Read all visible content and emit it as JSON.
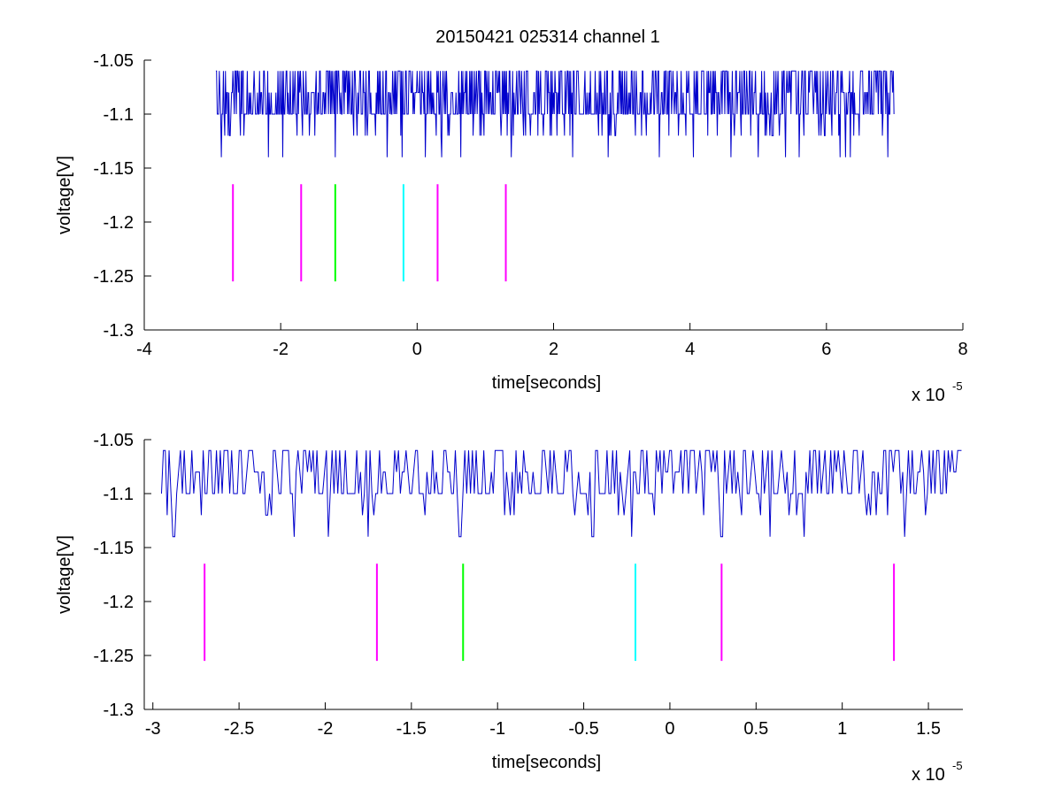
{
  "figure": {
    "title": "20150421 025314 channel 1"
  },
  "chart_data": [
    {
      "type": "line",
      "title": "20150421 025314 channel 1",
      "xlabel": "time[seconds]",
      "ylabel": "voltage[V]",
      "x_exponent_label": "x 10",
      "x_exponent": "-5",
      "xlim": [
        -4e-05,
        8e-05
      ],
      "ylim": [
        -1.3,
        -1.05
      ],
      "xticks": [
        -4e-05,
        -2e-05,
        0,
        2e-05,
        4e-05,
        6e-05,
        8e-05
      ],
      "xtick_labels": [
        "-4",
        "-2",
        "0",
        "2",
        "4",
        "6",
        "8"
      ],
      "yticks": [
        -1.3,
        -1.25,
        -1.2,
        -1.15,
        -1.1,
        -1.05
      ],
      "ytick_labels": [
        "-1.3",
        "-1.25",
        "-1.2",
        "-1.15",
        "-1.1",
        "-1.05"
      ],
      "grid": false,
      "signal": {
        "color": "#0000cc",
        "x_start": -2.95e-05,
        "x_end": 7e-05,
        "baseline": -1.1,
        "levels": [
          -1.06,
          -1.08,
          -1.1,
          -1.12,
          -1.14
        ],
        "dips_to_min": [
          -2.87e-05,
          -2.18e-05,
          -1.97e-05,
          -1.2e-05,
          -4.4e-06,
          -2.2e-06,
          1.2e-06,
          3.6e-06,
          6.4e-06,
          1.38e-05,
          2.28e-05,
          2.8e-05,
          3.55e-05,
          4.05e-05,
          4.6e-05,
          5e-05,
          5.4e-05,
          5.6e-05,
          6.2e-05,
          6.28e-05,
          6.35e-05,
          6.9e-05
        ],
        "description_points": "dense noise between -1.06 and -1.1 with occasional dips to -1.14"
      },
      "markers": [
        {
          "x": -2.7e-05,
          "y_low": -1.255,
          "y_high": -1.165,
          "color": "#ff00ff"
        },
        {
          "x": -1.7e-05,
          "y_low": -1.255,
          "y_high": -1.165,
          "color": "#ff00ff"
        },
        {
          "x": -1.2e-05,
          "y_low": -1.255,
          "y_high": -1.165,
          "color": "#00ff00"
        },
        {
          "x": -2e-06,
          "y_low": -1.255,
          "y_high": -1.165,
          "color": "#00ffff"
        },
        {
          "x": 3e-06,
          "y_low": -1.255,
          "y_high": -1.165,
          "color": "#ff00ff"
        },
        {
          "x": 1.3e-05,
          "y_low": -1.255,
          "y_high": -1.165,
          "color": "#ff00ff"
        }
      ]
    },
    {
      "type": "line",
      "title": "",
      "xlabel": "time[seconds]",
      "ylabel": "voltage[V]",
      "x_exponent_label": "x 10",
      "x_exponent": "-5",
      "xlim": [
        -3.05e-05,
        1.7e-05
      ],
      "ylim": [
        -1.3,
        -1.05
      ],
      "xticks": [
        -3e-05,
        -2.5e-05,
        -2e-05,
        -1.5e-05,
        -1e-05,
        -5e-06,
        0,
        5e-06,
        1e-05,
        1.5e-05
      ],
      "xtick_labels": [
        "-3",
        "-2.5",
        "-2",
        "-1.5",
        "-1",
        "-0.5",
        "0",
        "0.5",
        "1",
        "1.5"
      ],
      "yticks": [
        -1.3,
        -1.25,
        -1.2,
        -1.15,
        -1.1,
        -1.05
      ],
      "ytick_labels": [
        "-1.3",
        "-1.25",
        "-1.2",
        "-1.15",
        "-1.1",
        "-1.05"
      ],
      "grid": false,
      "signal": {
        "color": "#0000cc",
        "x_start": -2.95e-05,
        "x_end": 1.7e-05,
        "baseline": -1.1,
        "levels": [
          -1.06,
          -1.08,
          -1.1,
          -1.12,
          -1.14
        ],
        "dips_to_min": [
          -2.88e-05,
          -2.18e-05,
          -1.98e-05,
          -1.75e-05,
          -1.22e-05,
          -4.5e-06,
          -2.2e-06,
          3e-06,
          5.8e-06,
          7.8e-06,
          1.36e-05
        ],
        "description_points": "noise between -1.06 and -1.1 with occasional dips to -1.14"
      },
      "markers": [
        {
          "x": -2.7e-05,
          "y_low": -1.255,
          "y_high": -1.165,
          "color": "#ff00ff"
        },
        {
          "x": -1.7e-05,
          "y_low": -1.255,
          "y_high": -1.165,
          "color": "#ff00ff"
        },
        {
          "x": -1.2e-05,
          "y_low": -1.255,
          "y_high": -1.165,
          "color": "#00ff00"
        },
        {
          "x": -2e-06,
          "y_low": -1.255,
          "y_high": -1.165,
          "color": "#00ffff"
        },
        {
          "x": 3e-06,
          "y_low": -1.255,
          "y_high": -1.165,
          "color": "#ff00ff"
        },
        {
          "x": 1.3e-05,
          "y_low": -1.255,
          "y_high": -1.165,
          "color": "#ff00ff"
        }
      ]
    }
  ]
}
